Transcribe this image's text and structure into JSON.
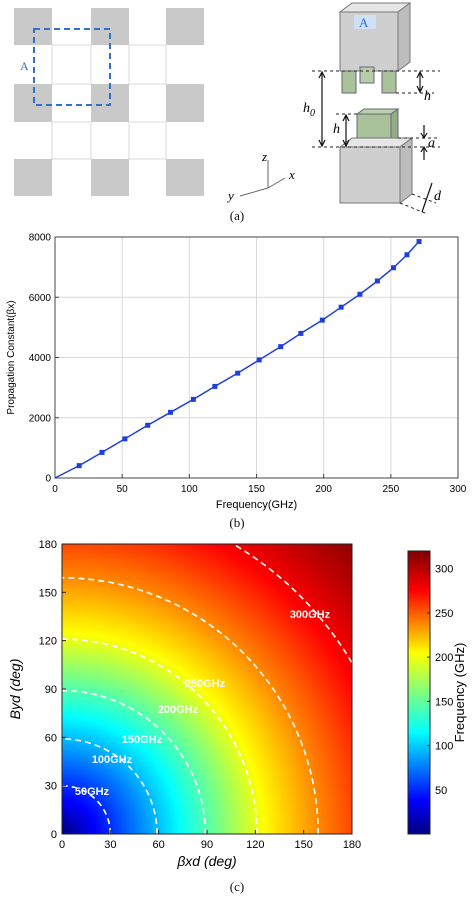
{
  "figure": {
    "panel_a": {
      "caption": "(a)",
      "label_A_grid": "A",
      "label_A_cube": "A",
      "dim_h_top": "h",
      "dim_h0": "h0",
      "dim_h_bottom": "h",
      "dim_a": "a",
      "dim_d": "d",
      "axis_z": "z",
      "axis_y": "y",
      "axis_x": "x"
    },
    "panel_b": {
      "caption": "(b)"
    },
    "panel_c": {
      "caption": "(c)"
    }
  },
  "chart_data": [
    {
      "type": "line",
      "xlabel": "Frequency(GHz)",
      "ylabel": "Propagation Constant(βx)",
      "xlim": [
        0,
        300
      ],
      "ylim": [
        0,
        8000
      ],
      "xticks": [
        "0",
        "50",
        "100",
        "150",
        "200",
        "250",
        "300"
      ],
      "yticks": [
        "0",
        "2000",
        "4000",
        "6000",
        "8000"
      ],
      "grid": true,
      "colors": {
        "series": "#1f3fdc"
      },
      "series": [
        {
          "x": [
            0,
            18,
            35,
            52,
            69,
            86,
            103,
            119,
            136,
            152,
            168,
            183,
            199,
            213,
            227,
            240,
            252,
            262,
            271
          ],
          "y": [
            0,
            410,
            850,
            1300,
            1750,
            2180,
            2610,
            3040,
            3480,
            3920,
            4360,
            4800,
            5240,
            5670,
            6100,
            6540,
            6980,
            7410,
            7850
          ]
        }
      ]
    },
    {
      "type": "heatmap",
      "xlabel": "βxd (deg)",
      "ylabel": "Byd (deg)",
      "xlim": [
        0,
        180
      ],
      "ylim": [
        0,
        180
      ],
      "xticks": [
        "0",
        "30",
        "60",
        "90",
        "120",
        "150",
        "180"
      ],
      "yticks": [
        "0",
        "30",
        "60",
        "90",
        "120",
        "150",
        "180"
      ],
      "colorbar": {
        "label": "Frequency (GHz)",
        "ticks": [
          "50",
          "100",
          "150",
          "200",
          "250",
          "300"
        ],
        "range": [
          0,
          320
        ],
        "colormap": "jet"
      },
      "contours": [
        {
          "label": "50GHz",
          "radius_deg": 30
        },
        {
          "label": "100GHz",
          "radius_deg": 59
        },
        {
          "label": "150GHz",
          "radius_deg": 89
        },
        {
          "label": "200GHz",
          "radius_deg": 121
        },
        {
          "label": "250GHz",
          "radius_deg": 159
        },
        {
          "label": "300GHz",
          "radius_deg": 209
        }
      ]
    }
  ]
}
